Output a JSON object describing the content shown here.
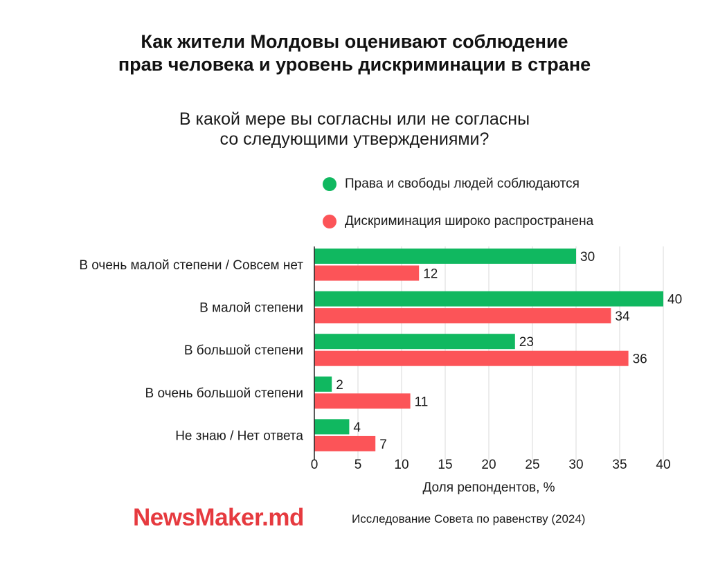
{
  "title": {
    "line1": "Как жители Молдовы оценивают соблюдение",
    "line2": "прав человека и уровень дискриминации в стране"
  },
  "subtitle": {
    "line1": "В какой мере вы согласны или не согласны",
    "line2": "со следующими утверждениями?"
  },
  "chart_data": {
    "type": "bar",
    "orientation": "horizontal",
    "categories": [
      "В очень малой степени / Совсем нет",
      "В малой степени",
      "В большой степени",
      "В очень большой степени",
      "Не знаю / Нет ответа"
    ],
    "series": [
      {
        "name": "Права и свободы людей соблюдаются",
        "color": "#10b860",
        "values": [
          30,
          40,
          23,
          2,
          4
        ]
      },
      {
        "name": "Дискриминация широко распространена",
        "color": "#fc5458",
        "values": [
          12,
          34,
          36,
          11,
          7
        ]
      }
    ],
    "xlabel": "Доля репондентов, %",
    "xlim": [
      0,
      40
    ],
    "xticks": [
      0,
      5,
      10,
      15,
      20,
      25,
      30,
      35,
      40
    ],
    "grid": true,
    "legend": "top"
  },
  "footer": {
    "logo": "NewsMaker.md",
    "source": "Исследование Совета по равенству (2024)"
  }
}
